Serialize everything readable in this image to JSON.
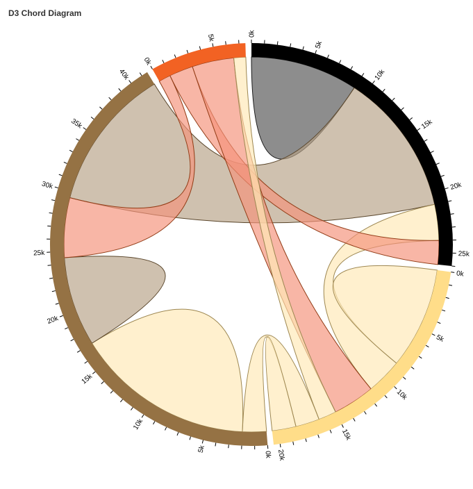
{
  "header": {
    "title": "D3 Chord Diagram"
  },
  "chart_data": {
    "type": "chord",
    "groups": [
      {
        "index": 0,
        "total": 26000,
        "color": "#000000",
        "chord_color": "#555555",
        "chord_stroke": "#1a1a1a"
      },
      {
        "index": 1,
        "total": 20500,
        "color": "#ffdd89",
        "chord_color": "#ffe8b6",
        "chord_stroke": "#9c8650"
      },
      {
        "index": 2,
        "total": 41500,
        "color": "#957244",
        "chord_color": "#b7a387",
        "chord_stroke": "#59452a"
      },
      {
        "index": 3,
        "total": 7500,
        "color": "#f26223",
        "chord_color": "#f4927a",
        "chord_stroke": "#913b15"
      }
    ],
    "tick_step": 1000,
    "label_step": 5000,
    "tick_label_suffix": "k",
    "chords": [
      {
        "source": [
          0,
          0,
          9000
        ],
        "target": [
          0,
          0,
          9000
        ],
        "color_group": 0
      },
      {
        "source": [
          0,
          9000,
          21000
        ],
        "target": [
          2,
          29500,
          41500
        ],
        "color_group": 2
      },
      {
        "source": [
          0,
          21000,
          24000
        ],
        "target": [
          1,
          8500,
          11500
        ],
        "color_group": 1
      },
      {
        "source": [
          0,
          24000,
          26000
        ],
        "target": [
          3,
          1000,
          3000
        ],
        "color_group": 3
      },
      {
        "source": [
          1,
          0,
          8500
        ],
        "target": [
          1,
          0,
          8500
        ],
        "color_group": 1
      },
      {
        "source": [
          1,
          11500,
          15000
        ],
        "target": [
          3,
          3000,
          6500
        ],
        "color_group": 3
      },
      {
        "source": [
          1,
          15000,
          16500
        ],
        "target": [
          3,
          6500,
          7500
        ],
        "color_group": 1
      },
      {
        "source": [
          1,
          16500,
          18500
        ],
        "target": [
          2,
          0,
          2000
        ],
        "color_group": 1
      },
      {
        "source": [
          1,
          18500,
          20500
        ],
        "target": [
          1,
          18500,
          20500
        ],
        "color_group": 1
      },
      {
        "source": [
          2,
          2000,
          17000
        ],
        "target": [
          2,
          2000,
          17000
        ],
        "color_group": 1
      },
      {
        "source": [
          2,
          17000,
          24500
        ],
        "target": [
          2,
          17000,
          24500
        ],
        "color_group": 2
      },
      {
        "source": [
          2,
          24500,
          29500
        ],
        "target": [
          3,
          0,
          1000
        ],
        "color_group": 3
      }
    ]
  }
}
